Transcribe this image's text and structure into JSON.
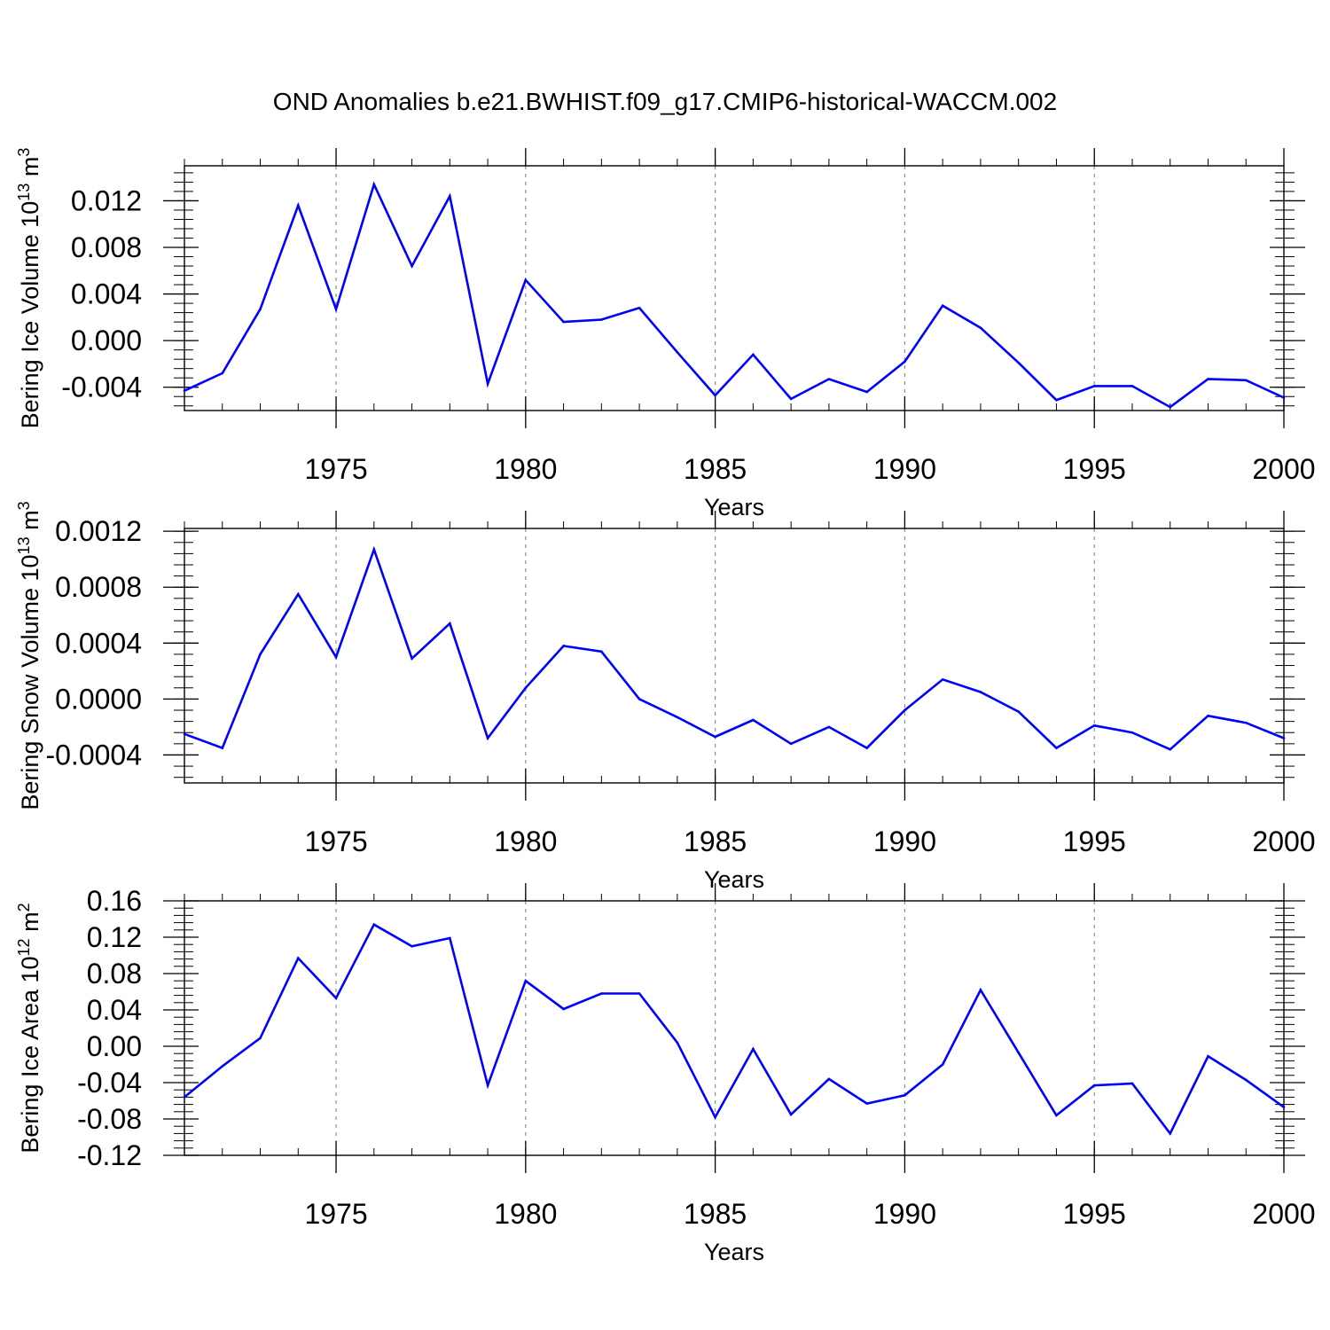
{
  "title": "OND Anomalies b.e21.BWHIST.f09_g17.CMIP6-historical-WACCM.002",
  "line_color": "#0000ff",
  "chart_data": [
    {
      "type": "line",
      "ylabel_main": "Bering Ice Volume 10",
      "ylabel_exp": "13",
      "ylabel_unit": " m",
      "ylabel_unit_exp": "3",
      "xlabel": "Years",
      "xlim": [
        1971,
        2000
      ],
      "ylim": [
        -0.006,
        0.015
      ],
      "yticks": [
        -0.004,
        0.0,
        0.004,
        0.008,
        0.012
      ],
      "ytick_labels": [
        "-0.004",
        "0.000",
        "0.004",
        "0.008",
        "0.012"
      ],
      "xticks": [
        1975,
        1980,
        1985,
        1990,
        1995,
        2000
      ],
      "xtick_labels": [
        "1975",
        "1980",
        "1985",
        "1990",
        "1995",
        "2000"
      ],
      "grid": "vertical-dashed",
      "series": [
        {
          "x": [
            1971,
            1972,
            1973,
            1974,
            1975,
            1976,
            1977,
            1978,
            1979,
            1980,
            1981,
            1982,
            1983,
            1984,
            1985,
            1986,
            1987,
            1988,
            1989,
            1990,
            1991,
            1992,
            1993,
            1994,
            1995,
            1996,
            1997,
            1998,
            1999,
            2000
          ],
          "values": [
            -0.0043,
            -0.0028,
            0.0027,
            0.0116,
            0.0027,
            0.0134,
            0.0064,
            0.0124,
            -0.0037,
            0.0052,
            0.0016,
            0.0018,
            0.0028,
            -0.001,
            -0.0047,
            -0.0012,
            -0.005,
            -0.0033,
            -0.0044,
            -0.0018,
            0.003,
            0.0011,
            -0.0019,
            -0.0051,
            -0.0039,
            -0.0039,
            -0.0057,
            -0.0033,
            -0.0034,
            -0.0049
          ]
        }
      ]
    },
    {
      "type": "line",
      "ylabel_main": "Bering Snow Volume 10",
      "ylabel_exp": "13",
      "ylabel_unit": " m",
      "ylabel_unit_exp": "3",
      "xlabel": "Years",
      "xlim": [
        1971,
        2000
      ],
      "ylim": [
        -0.0006,
        0.00122
      ],
      "yticks": [
        -0.0004,
        0.0,
        0.0004,
        0.0008,
        0.0012
      ],
      "ytick_labels": [
        "-0.0004",
        "0.0000",
        "0.0004",
        "0.0008",
        "0.0012"
      ],
      "xticks": [
        1975,
        1980,
        1985,
        1990,
        1995,
        2000
      ],
      "xtick_labels": [
        "1975",
        "1980",
        "1985",
        "1990",
        "1995",
        "2000"
      ],
      "grid": "vertical-dashed",
      "series": [
        {
          "x": [
            1971,
            1972,
            1973,
            1974,
            1975,
            1976,
            1977,
            1978,
            1979,
            1980,
            1981,
            1982,
            1983,
            1984,
            1985,
            1986,
            1987,
            1988,
            1989,
            1990,
            1991,
            1992,
            1993,
            1994,
            1995,
            1996,
            1997,
            1998,
            1999,
            2000
          ],
          "values": [
            -0.00025,
            -0.00035,
            0.00032,
            0.00075,
            0.0003,
            0.00107,
            0.00029,
            0.00054,
            -0.00028,
            8e-05,
            0.00038,
            0.00034,
            0.0,
            -0.00013,
            -0.00027,
            -0.00015,
            -0.00032,
            -0.0002,
            -0.00035,
            -8e-05,
            0.00014,
            5e-05,
            -9e-05,
            -0.00035,
            -0.00019,
            -0.00024,
            -0.00036,
            -0.00012,
            -0.00017,
            -0.00028
          ]
        }
      ]
    },
    {
      "type": "line",
      "ylabel_main": "Bering Ice Area 10",
      "ylabel_exp": "12",
      "ylabel_unit": " m",
      "ylabel_unit_exp": "2",
      "xlabel": "Years",
      "xlim": [
        1971,
        2000
      ],
      "ylim": [
        -0.12,
        0.16
      ],
      "yticks": [
        -0.12,
        -0.08,
        -0.04,
        0.0,
        0.04,
        0.08,
        0.12,
        0.16
      ],
      "ytick_labels": [
        "-0.12",
        "-0.08",
        "-0.04",
        "0.00",
        "0.04",
        "0.08",
        "0.12",
        "0.16"
      ],
      "xticks": [
        1975,
        1980,
        1985,
        1990,
        1995,
        2000
      ],
      "xtick_labels": [
        "1975",
        "1980",
        "1985",
        "1990",
        "1995",
        "2000"
      ],
      "grid": "vertical-dashed",
      "series": [
        {
          "x": [
            1971,
            1972,
            1973,
            1974,
            1975,
            1976,
            1977,
            1978,
            1979,
            1980,
            1981,
            1982,
            1983,
            1984,
            1985,
            1986,
            1987,
            1988,
            1989,
            1990,
            1991,
            1992,
            1993,
            1994,
            1995,
            1996,
            1997,
            1998,
            1999,
            2000
          ],
          "values": [
            -0.056,
            -0.022,
            0.009,
            0.097,
            0.053,
            0.134,
            0.11,
            0.119,
            -0.043,
            0.072,
            0.041,
            0.058,
            0.058,
            0.004,
            -0.078,
            -0.003,
            -0.075,
            -0.036,
            -0.063,
            -0.054,
            -0.02,
            0.062,
            -0.007,
            -0.076,
            -0.043,
            -0.041,
            -0.096,
            -0.011,
            -0.037,
            -0.067
          ]
        }
      ]
    }
  ]
}
